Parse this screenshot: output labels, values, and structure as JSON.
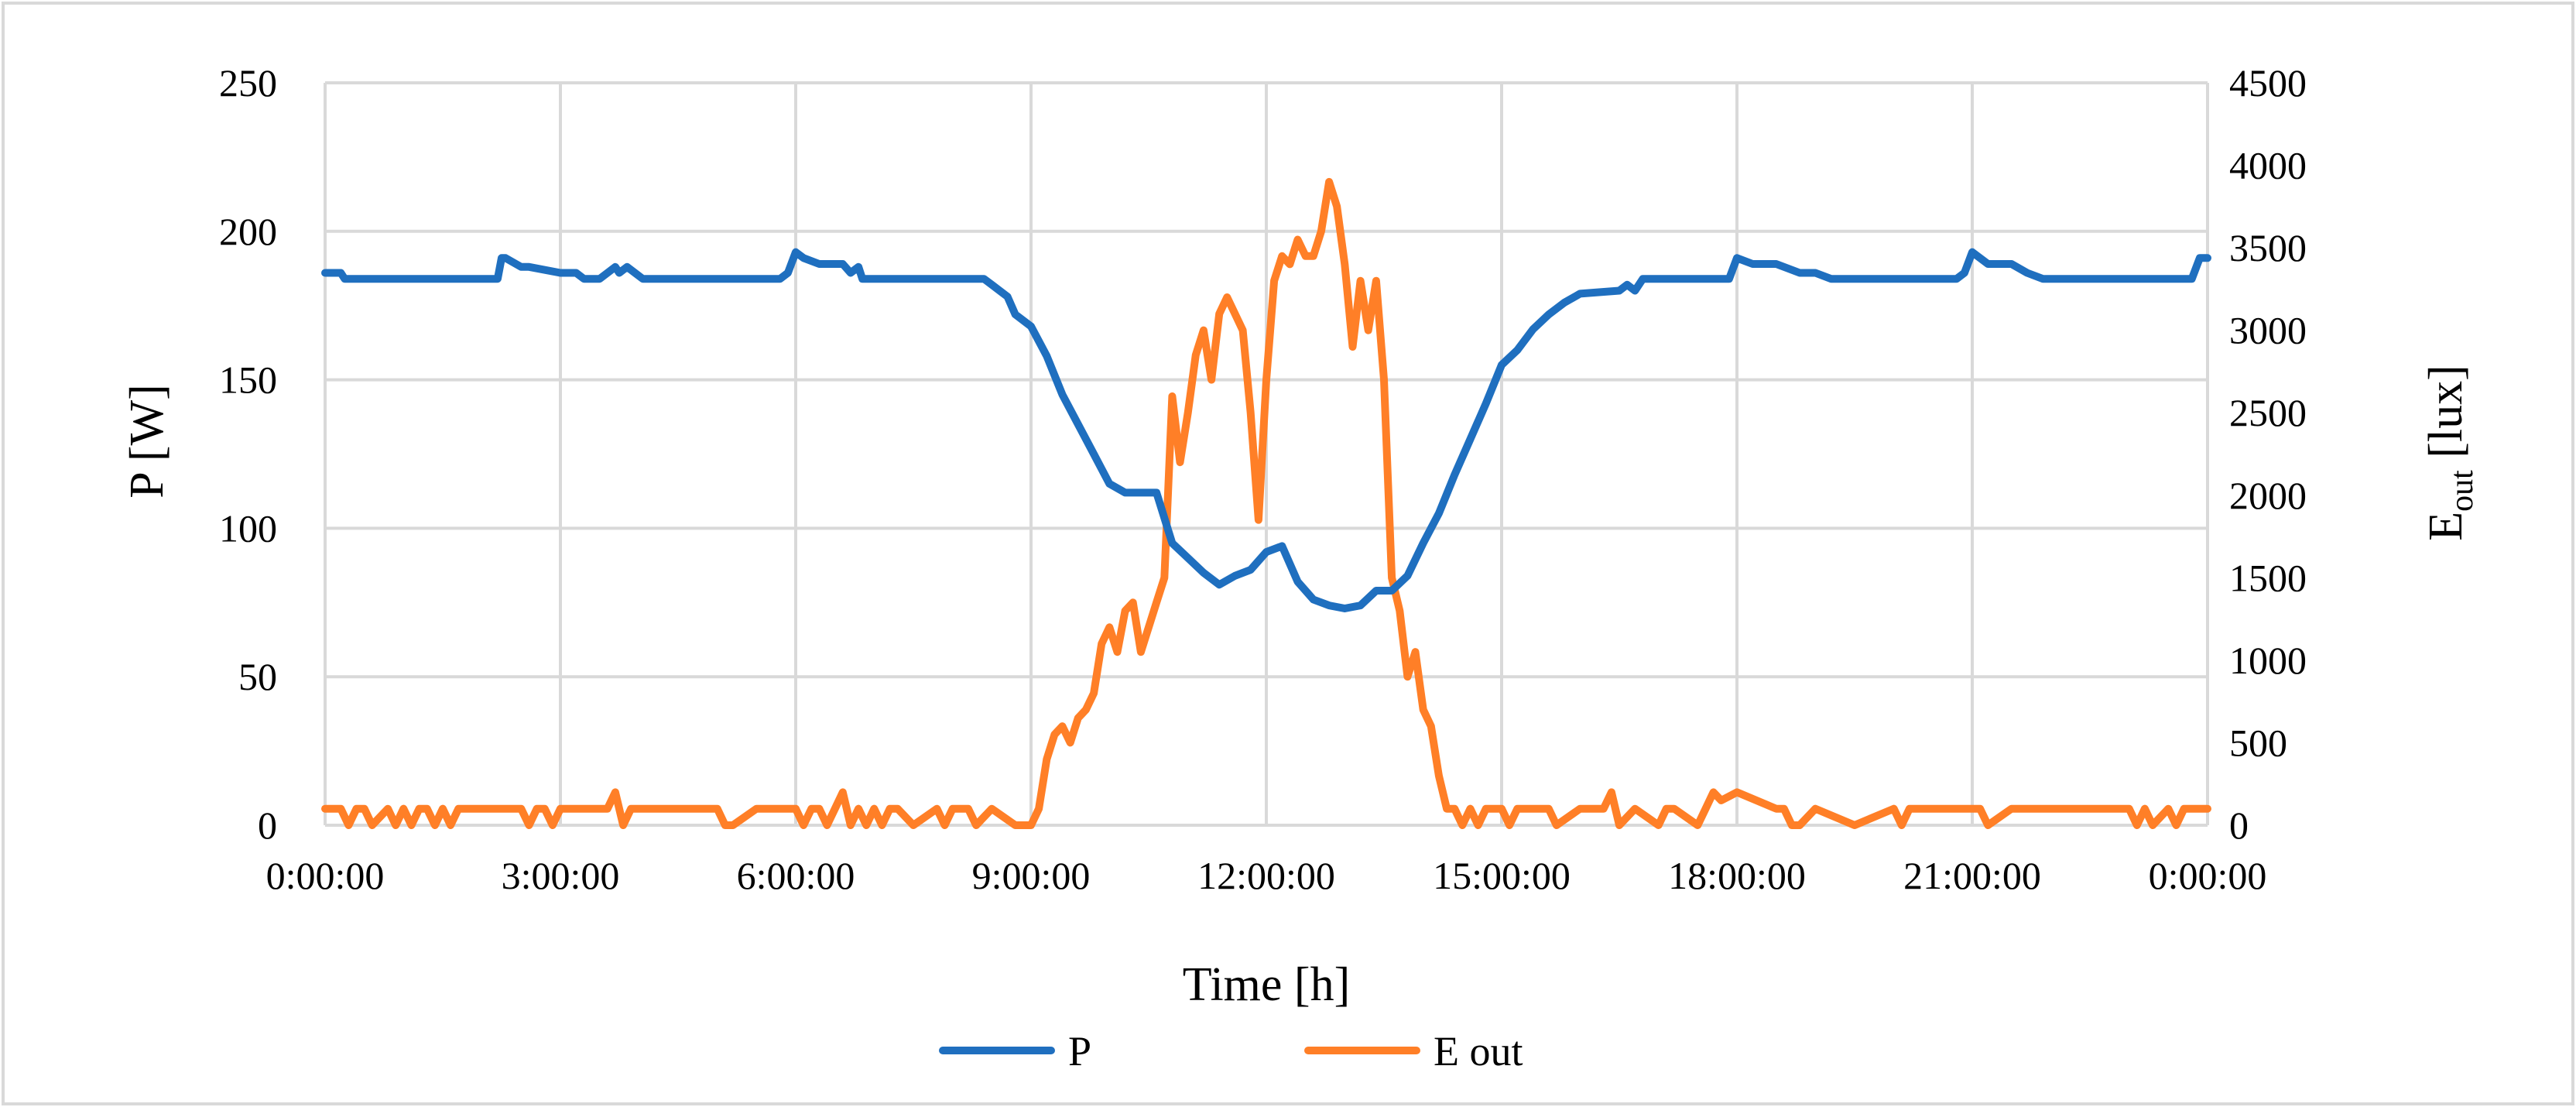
{
  "chart_data": {
    "type": "line",
    "xlabel": "Time [h]",
    "ylabel_left": "P [W]",
    "ylabel_right_main": "E",
    "ylabel_right_sub": "out",
    "ylabel_right_unit": " [lux]",
    "x_unit": "hours",
    "xlim": [
      0,
      24
    ],
    "x_ticks": [
      0,
      3,
      6,
      9,
      12,
      15,
      18,
      21,
      24
    ],
    "x_tick_labels": [
      "0:00:00",
      "3:00:00",
      "6:00:00",
      "9:00:00",
      "12:00:00",
      "15:00:00",
      "18:00:00",
      "21:00:00",
      "0:00:00"
    ],
    "ylim_left": [
      0,
      250
    ],
    "y_left_ticks": [
      0,
      50,
      100,
      150,
      200,
      250
    ],
    "ylim_right": [
      0,
      4500
    ],
    "y_right_ticks": [
      0,
      500,
      1000,
      1500,
      2000,
      2500,
      3000,
      3500,
      4000,
      4500
    ],
    "grid": true,
    "legend_position": "bottom",
    "series": [
      {
        "name": "P",
        "axis": "left",
        "color": "#1f6fbf",
        "x": [
          0.0,
          0.2,
          0.25,
          0.5,
          1.0,
          1.5,
          2.0,
          2.2,
          2.25,
          2.3,
          2.5,
          2.6,
          3.0,
          3.2,
          3.3,
          3.5,
          3.7,
          3.75,
          3.85,
          3.95,
          4.05,
          4.5,
          5.0,
          5.5,
          5.8,
          5.9,
          6.0,
          6.1,
          6.3,
          6.6,
          6.7,
          6.8,
          6.85,
          7.0,
          7.5,
          8.0,
          8.4,
          8.5,
          8.7,
          8.8,
          9.0,
          9.2,
          9.4,
          9.6,
          9.8,
          10.0,
          10.2,
          10.4,
          10.6,
          10.8,
          11.0,
          11.2,
          11.4,
          11.6,
          11.8,
          12.0,
          12.2,
          12.4,
          12.6,
          12.8,
          13.0,
          13.2,
          13.4,
          13.5,
          13.6,
          13.8,
          14.0,
          14.2,
          14.4,
          14.6,
          14.8,
          15.0,
          15.2,
          15.4,
          15.6,
          15.8,
          16.0,
          16.5,
          16.6,
          16.7,
          16.8,
          17.0,
          17.5,
          17.9,
          18.0,
          18.2,
          18.5,
          18.8,
          19.0,
          19.2,
          19.5,
          20.0,
          20.5,
          20.8,
          20.9,
          21.0,
          21.2,
          21.5,
          21.7,
          21.9,
          22.0,
          22.5,
          23.0,
          23.5,
          23.8,
          23.9,
          24.0
        ],
        "values": [
          186,
          186,
          184,
          184,
          184,
          184,
          184,
          184,
          191,
          191,
          188,
          188,
          186,
          186,
          184,
          184,
          188,
          186,
          188,
          186,
          184,
          184,
          184,
          184,
          184,
          186,
          193,
          191,
          189,
          189,
          186,
          188,
          184,
          184,
          184,
          184,
          184,
          182,
          178,
          172,
          168,
          158,
          145,
          135,
          125,
          115,
          112,
          112,
          112,
          95,
          90,
          85,
          81,
          84,
          86,
          92,
          94,
          82,
          76,
          74,
          73,
          74,
          79,
          79,
          79,
          84,
          95,
          105,
          118,
          130,
          142,
          155,
          160,
          167,
          172,
          176,
          179,
          180,
          182,
          180,
          184,
          184,
          184,
          184,
          191,
          189,
          189,
          186,
          186,
          184,
          184,
          184,
          184,
          184,
          186,
          193,
          189,
          189,
          186,
          184,
          184,
          184,
          184,
          184,
          184,
          191,
          191
        ]
      },
      {
        "name": "E out",
        "axis": "right",
        "color": "#ff7f27",
        "x": [
          0.0,
          0.2,
          0.3,
          0.4,
          0.5,
          0.6,
          0.8,
          0.9,
          1.0,
          1.1,
          1.2,
          1.3,
          1.4,
          1.5,
          1.6,
          1.7,
          1.8,
          2.0,
          2.5,
          2.6,
          2.7,
          2.8,
          2.9,
          3.0,
          3.5,
          3.6,
          3.7,
          3.8,
          3.9,
          4.0,
          4.5,
          5.0,
          5.1,
          5.2,
          5.5,
          6.0,
          6.1,
          6.2,
          6.3,
          6.4,
          6.5,
          6.6,
          6.7,
          6.8,
          6.9,
          7.0,
          7.1,
          7.2,
          7.3,
          7.5,
          7.8,
          7.9,
          8.0,
          8.2,
          8.3,
          8.5,
          8.8,
          9.0,
          9.1,
          9.2,
          9.3,
          9.4,
          9.5,
          9.6,
          9.7,
          9.8,
          9.9,
          10.0,
          10.1,
          10.2,
          10.3,
          10.4,
          10.5,
          10.6,
          10.7,
          10.8,
          10.9,
          11.0,
          11.1,
          11.2,
          11.3,
          11.4,
          11.5,
          11.6,
          11.7,
          11.8,
          11.9,
          12.0,
          12.1,
          12.2,
          12.3,
          12.4,
          12.5,
          12.6,
          12.7,
          12.8,
          12.9,
          13.0,
          13.1,
          13.2,
          13.3,
          13.4,
          13.5,
          13.6,
          13.7,
          13.8,
          13.9,
          14.0,
          14.1,
          14.2,
          14.3,
          14.4,
          14.5,
          14.6,
          14.7,
          14.8,
          15.0,
          15.1,
          15.2,
          15.5,
          15.6,
          15.7,
          16.0,
          16.3,
          16.4,
          16.5,
          16.7,
          17.0,
          17.1,
          17.2,
          17.5,
          17.6,
          17.7,
          17.8,
          18.0,
          18.5,
          18.6,
          18.7,
          18.8,
          19.0,
          19.5,
          20.0,
          20.1,
          20.2,
          20.5,
          21.0,
          21.1,
          21.2,
          21.5,
          22.0,
          22.5,
          23.0,
          23.1,
          23.2,
          23.3,
          23.5,
          23.6,
          23.7,
          24.0
        ],
        "values": [
          100,
          100,
          0,
          100,
          100,
          0,
          100,
          0,
          100,
          0,
          100,
          100,
          0,
          100,
          0,
          100,
          100,
          100,
          100,
          0,
          100,
          100,
          0,
          100,
          100,
          100,
          200,
          0,
          100,
          100,
          100,
          100,
          0,
          0,
          100,
          100,
          0,
          100,
          100,
          0,
          100,
          200,
          0,
          100,
          0,
          100,
          0,
          100,
          100,
          0,
          100,
          0,
          100,
          100,
          0,
          100,
          0,
          0,
          100,
          400,
          550,
          600,
          500,
          650,
          700,
          800,
          1100,
          1200,
          1050,
          1300,
          1350,
          1050,
          1200,
          1350,
          1500,
          2600,
          2200,
          2500,
          2850,
          3000,
          2700,
          3100,
          3200,
          3100,
          3000,
          2500,
          1850,
          2700,
          3300,
          3450,
          3400,
          3550,
          3450,
          3450,
          3600,
          3900,
          3750,
          3400,
          2900,
          3300,
          3000,
          3300,
          2700,
          1500,
          1300,
          900,
          1050,
          700,
          600,
          300,
          100,
          100,
          0,
          100,
          0,
          100,
          100,
          0,
          100,
          100,
          100,
          0,
          100,
          100,
          200,
          0,
          100,
          0,
          100,
          100,
          0,
          100,
          200,
          150,
          200,
          100,
          100,
          0,
          0,
          100,
          0,
          100,
          0,
          100,
          100,
          100,
          100,
          0,
          100,
          100,
          100,
          100,
          0,
          100,
          0,
          100,
          0,
          100,
          100
        ]
      }
    ]
  }
}
